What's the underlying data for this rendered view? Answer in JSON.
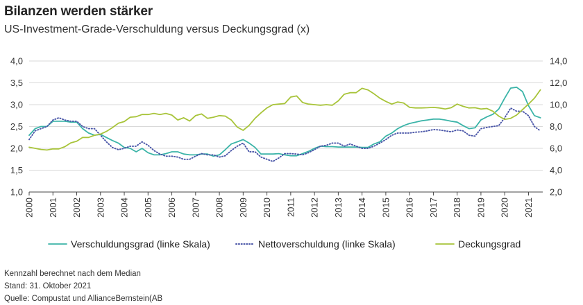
{
  "title": "Bilanzen werden stärker",
  "subtitle": "US-Investment-Grade-Verschuldung versus Deckungsgrad (x)",
  "footnotes": [
    "Kennzahl berechnet nach dem Median",
    "Stand: 31. Oktober 2021",
    "Quelle: Compustat und AllianceBernstein(AB"
  ],
  "chart_data": {
    "type": "line",
    "title": "Bilanzen werden stärker",
    "subtitle": "US-Investment-Grade-Verschuldung versus Deckungsgrad (x)",
    "xlabel": "",
    "ylabel_left": "",
    "ylabel_right": "",
    "xlim": [
      2000,
      2021.6
    ],
    "ylim_left": [
      1.0,
      4.0
    ],
    "ylim_right": [
      2.0,
      14.0
    ],
    "y_ticks_left": [
      "1,0",
      "1,5",
      "2,0",
      "2,5",
      "3,0",
      "3,5",
      "4,0"
    ],
    "y_ticks_left_values": [
      1.0,
      1.5,
      2.0,
      2.5,
      3.0,
      3.5,
      4.0
    ],
    "y_ticks_right": [
      "2,0",
      "4,0",
      "6,0",
      "8,0",
      "10,0",
      "12,0",
      "14,0"
    ],
    "y_ticks_right_values": [
      2.0,
      4.0,
      6.0,
      8.0,
      10.0,
      12.0,
      14.0
    ],
    "x_ticks": [
      "2000",
      "2001",
      "2002",
      "2003",
      "2004",
      "2005",
      "2006",
      "2007",
      "2008",
      "2009",
      "2010",
      "2011",
      "2012",
      "2013",
      "2014",
      "2015",
      "2016",
      "2017",
      "2018",
      "2019",
      "2020",
      "2021"
    ],
    "grid": "horizontal",
    "legend_position": "bottom",
    "series": [
      {
        "name": "Verschuldungsgrad (linke Skala)",
        "axis": "left",
        "color": "#3bb4a8",
        "style": "solid",
        "x": [
          2000,
          2000.25,
          2000.5,
          2000.75,
          2001,
          2001.25,
          2001.5,
          2001.75,
          2002,
          2002.25,
          2002.5,
          2002.75,
          2003,
          2003.25,
          2003.5,
          2003.75,
          2004,
          2004.25,
          2004.5,
          2004.75,
          2005,
          2005.25,
          2005.5,
          2005.75,
          2006,
          2006.25,
          2006.5,
          2006.75,
          2007,
          2007.25,
          2007.5,
          2007.75,
          2008,
          2008.25,
          2008.5,
          2008.75,
          2009,
          2009.25,
          2009.5,
          2009.75,
          2010,
          2010.25,
          2010.5,
          2010.75,
          2011,
          2011.25,
          2011.5,
          2011.75,
          2012,
          2012.25,
          2012.5,
          2012.75,
          2013,
          2013.25,
          2013.5,
          2013.75,
          2014,
          2014.25,
          2014.5,
          2014.75,
          2015,
          2015.25,
          2015.5,
          2015.75,
          2016,
          2016.25,
          2016.5,
          2016.75,
          2017,
          2017.25,
          2017.5,
          2017.75,
          2018,
          2018.25,
          2018.5,
          2018.75,
          2019,
          2019.25,
          2019.5,
          2019.75,
          2020,
          2020.25,
          2020.5,
          2020.75,
          2021,
          2021.25,
          2021.5
        ],
        "values": [
          2.3,
          2.45,
          2.5,
          2.5,
          2.62,
          2.62,
          2.62,
          2.6,
          2.6,
          2.45,
          2.35,
          2.3,
          2.32,
          2.25,
          2.18,
          2.12,
          2.02,
          2.0,
          1.92,
          2.0,
          1.9,
          1.85,
          1.85,
          1.88,
          1.92,
          1.92,
          1.87,
          1.85,
          1.85,
          1.87,
          1.87,
          1.82,
          1.85,
          1.97,
          2.1,
          2.15,
          2.2,
          2.12,
          2.02,
          1.87,
          1.87,
          1.87,
          1.88,
          1.85,
          1.83,
          1.83,
          1.88,
          1.93,
          2.0,
          2.05,
          2.04,
          2.04,
          2.03,
          2.03,
          2.03,
          2.03,
          2.02,
          2.02,
          2.1,
          2.15,
          2.28,
          2.35,
          2.45,
          2.52,
          2.57,
          2.6,
          2.63,
          2.65,
          2.67,
          2.67,
          2.65,
          2.62,
          2.6,
          2.52,
          2.45,
          2.47,
          2.65,
          2.72,
          2.78,
          2.9,
          3.15,
          3.38,
          3.4,
          3.3,
          2.98,
          2.75,
          2.7
        ]
      },
      {
        "name": "Nettoverschuldung (linke Skala)",
        "axis": "left",
        "color": "#4a56a8",
        "style": "dotted",
        "x": [
          2000,
          2000.25,
          2000.5,
          2000.75,
          2001,
          2001.25,
          2001.5,
          2001.75,
          2002,
          2002.25,
          2002.5,
          2002.75,
          2003,
          2003.25,
          2003.5,
          2003.75,
          2004,
          2004.25,
          2004.5,
          2004.75,
          2005,
          2005.25,
          2005.5,
          2005.75,
          2006,
          2006.25,
          2006.5,
          2006.75,
          2007,
          2007.25,
          2007.5,
          2007.75,
          2008,
          2008.25,
          2008.5,
          2008.75,
          2009,
          2009.25,
          2009.5,
          2009.75,
          2010,
          2010.25,
          2010.5,
          2010.75,
          2011,
          2011.25,
          2011.5,
          2011.75,
          2012,
          2012.25,
          2012.5,
          2012.75,
          2013,
          2013.25,
          2013.5,
          2013.75,
          2014,
          2014.25,
          2014.5,
          2014.75,
          2015,
          2015.25,
          2015.5,
          2015.75,
          2016,
          2016.25,
          2016.5,
          2016.75,
          2017,
          2017.25,
          2017.5,
          2017.75,
          2018,
          2018.25,
          2018.5,
          2018.75,
          2019,
          2019.25,
          2019.5,
          2019.75,
          2020,
          2020.25,
          2020.5,
          2020.75,
          2021,
          2021.25,
          2021.5
        ],
        "values": [
          2.2,
          2.4,
          2.45,
          2.5,
          2.65,
          2.7,
          2.65,
          2.62,
          2.62,
          2.5,
          2.45,
          2.45,
          2.3,
          2.15,
          2.02,
          1.97,
          2.0,
          2.05,
          2.05,
          2.15,
          2.07,
          1.95,
          1.87,
          1.82,
          1.82,
          1.8,
          1.75,
          1.75,
          1.82,
          1.88,
          1.85,
          1.85,
          1.8,
          1.83,
          1.95,
          2.05,
          2.12,
          1.92,
          1.92,
          1.8,
          1.75,
          1.7,
          1.78,
          1.88,
          1.88,
          1.87,
          1.85,
          1.9,
          1.97,
          2.05,
          2.07,
          2.12,
          2.12,
          2.05,
          2.1,
          2.05,
          2.0,
          2.0,
          2.05,
          2.12,
          2.2,
          2.3,
          2.35,
          2.35,
          2.35,
          2.37,
          2.38,
          2.4,
          2.43,
          2.42,
          2.4,
          2.38,
          2.42,
          2.4,
          2.3,
          2.28,
          2.45,
          2.48,
          2.5,
          2.52,
          2.7,
          2.92,
          2.85,
          2.85,
          2.75,
          2.5,
          2.4
        ]
      },
      {
        "name": "Deckungsgrad",
        "axis": "right",
        "color": "#a8c43a",
        "style": "solid",
        "x": [
          2000,
          2000.25,
          2000.5,
          2000.75,
          2001,
          2001.25,
          2001.5,
          2001.75,
          2002,
          2002.25,
          2002.5,
          2002.75,
          2003,
          2003.25,
          2003.5,
          2003.75,
          2004,
          2004.25,
          2004.5,
          2004.75,
          2005,
          2005.25,
          2005.5,
          2005.75,
          2006,
          2006.25,
          2006.5,
          2006.75,
          2007,
          2007.25,
          2007.5,
          2007.75,
          2008,
          2008.25,
          2008.5,
          2008.75,
          2009,
          2009.25,
          2009.5,
          2009.75,
          2010,
          2010.25,
          2010.5,
          2010.75,
          2011,
          2011.25,
          2011.5,
          2011.75,
          2012,
          2012.25,
          2012.5,
          2012.75,
          2013,
          2013.25,
          2013.5,
          2013.75,
          2014,
          2014.25,
          2014.5,
          2014.75,
          2015,
          2015.25,
          2015.5,
          2015.75,
          2016,
          2016.25,
          2016.5,
          2016.75,
          2017,
          2017.25,
          2017.5,
          2017.75,
          2018,
          2018.25,
          2018.5,
          2018.75,
          2019,
          2019.25,
          2019.5,
          2019.75,
          2020,
          2020.25,
          2020.5,
          2020.75,
          2021,
          2021.25,
          2021.5
        ],
        "values": [
          6.1,
          6.0,
          5.9,
          5.85,
          5.95,
          5.95,
          6.15,
          6.5,
          6.65,
          7.0,
          7.0,
          7.2,
          7.3,
          7.55,
          7.9,
          8.3,
          8.45,
          8.85,
          8.9,
          9.1,
          9.1,
          9.2,
          9.1,
          9.2,
          9.05,
          8.6,
          8.8,
          8.5,
          9.0,
          9.15,
          8.75,
          8.85,
          9.0,
          8.95,
          8.6,
          7.95,
          7.65,
          8.1,
          8.75,
          9.25,
          9.7,
          10.0,
          10.05,
          10.1,
          10.7,
          10.8,
          10.2,
          10.05,
          10.0,
          9.95,
          10.0,
          9.95,
          10.35,
          10.95,
          11.1,
          11.1,
          11.5,
          11.35,
          11.0,
          10.6,
          10.3,
          10.05,
          10.25,
          10.15,
          9.75,
          9.7,
          9.7,
          9.72,
          9.75,
          9.7,
          9.6,
          9.72,
          10.05,
          9.85,
          9.7,
          9.72,
          9.6,
          9.65,
          9.4,
          8.95,
          8.65,
          8.75,
          9.05,
          9.55,
          10.05,
          10.6,
          11.35
        ]
      }
    ]
  }
}
